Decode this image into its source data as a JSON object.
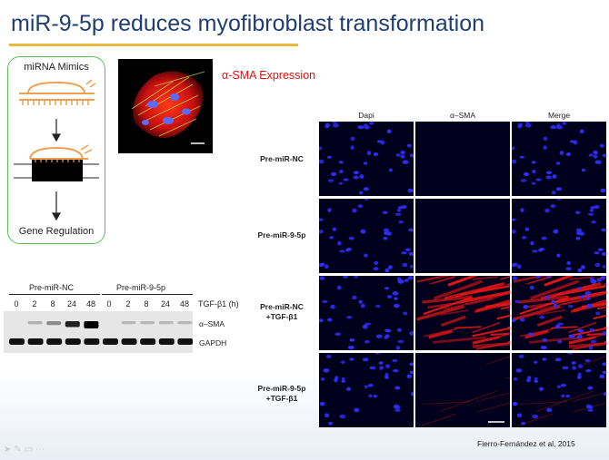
{
  "slide": {
    "title": "miR-9-5p reduces myofibroblast transformation",
    "citation": "Fierro-Fernández et al, 2015"
  },
  "mimic_diagram": {
    "title": "miRNA Mimics",
    "bottom_label": "Gene Regulation"
  },
  "expression_label": "α-SMA Expression",
  "western_blot": {
    "groups": [
      "Pre-miR-NC",
      "Pre-miR-9-5p"
    ],
    "timepoints": [
      "0",
      "2",
      "8",
      "24",
      "48"
    ],
    "tgf_label": "TGF-β1 (h)",
    "bands": [
      "α–SMA",
      "GAPDH"
    ],
    "sma_intensity": [
      0,
      0.08,
      0.25,
      0.7,
      1.0,
      0,
      0.05,
      0.05,
      0.05,
      0.05
    ]
  },
  "microscopy": {
    "columns": [
      "Dapi",
      "α–SMA",
      "Merge"
    ],
    "rows": [
      {
        "line1": "Pre-miR-NC",
        "line2": "",
        "sma": 0
      },
      {
        "line1": "Pre-miR-9-5p",
        "line2": "",
        "sma": 0
      },
      {
        "line1": "Pre-miR-NC",
        "line2": "+TGF-β1",
        "sma": 1.0
      },
      {
        "line1": "Pre-miR-9-5p",
        "line2": "+TGF-β1",
        "sma": 0.2
      }
    ]
  },
  "colors": {
    "title": "#1f3f73",
    "rule": "#e8b93a",
    "box_border": "#5cbf5c",
    "mimic_orange": "#f0a050",
    "dapi_blue": "#2e2eff",
    "sma_red": "#e01515"
  },
  "toolbar": {
    "icons": [
      "pointer-icon",
      "pen-icon",
      "pages-icon",
      "more-icon"
    ]
  }
}
